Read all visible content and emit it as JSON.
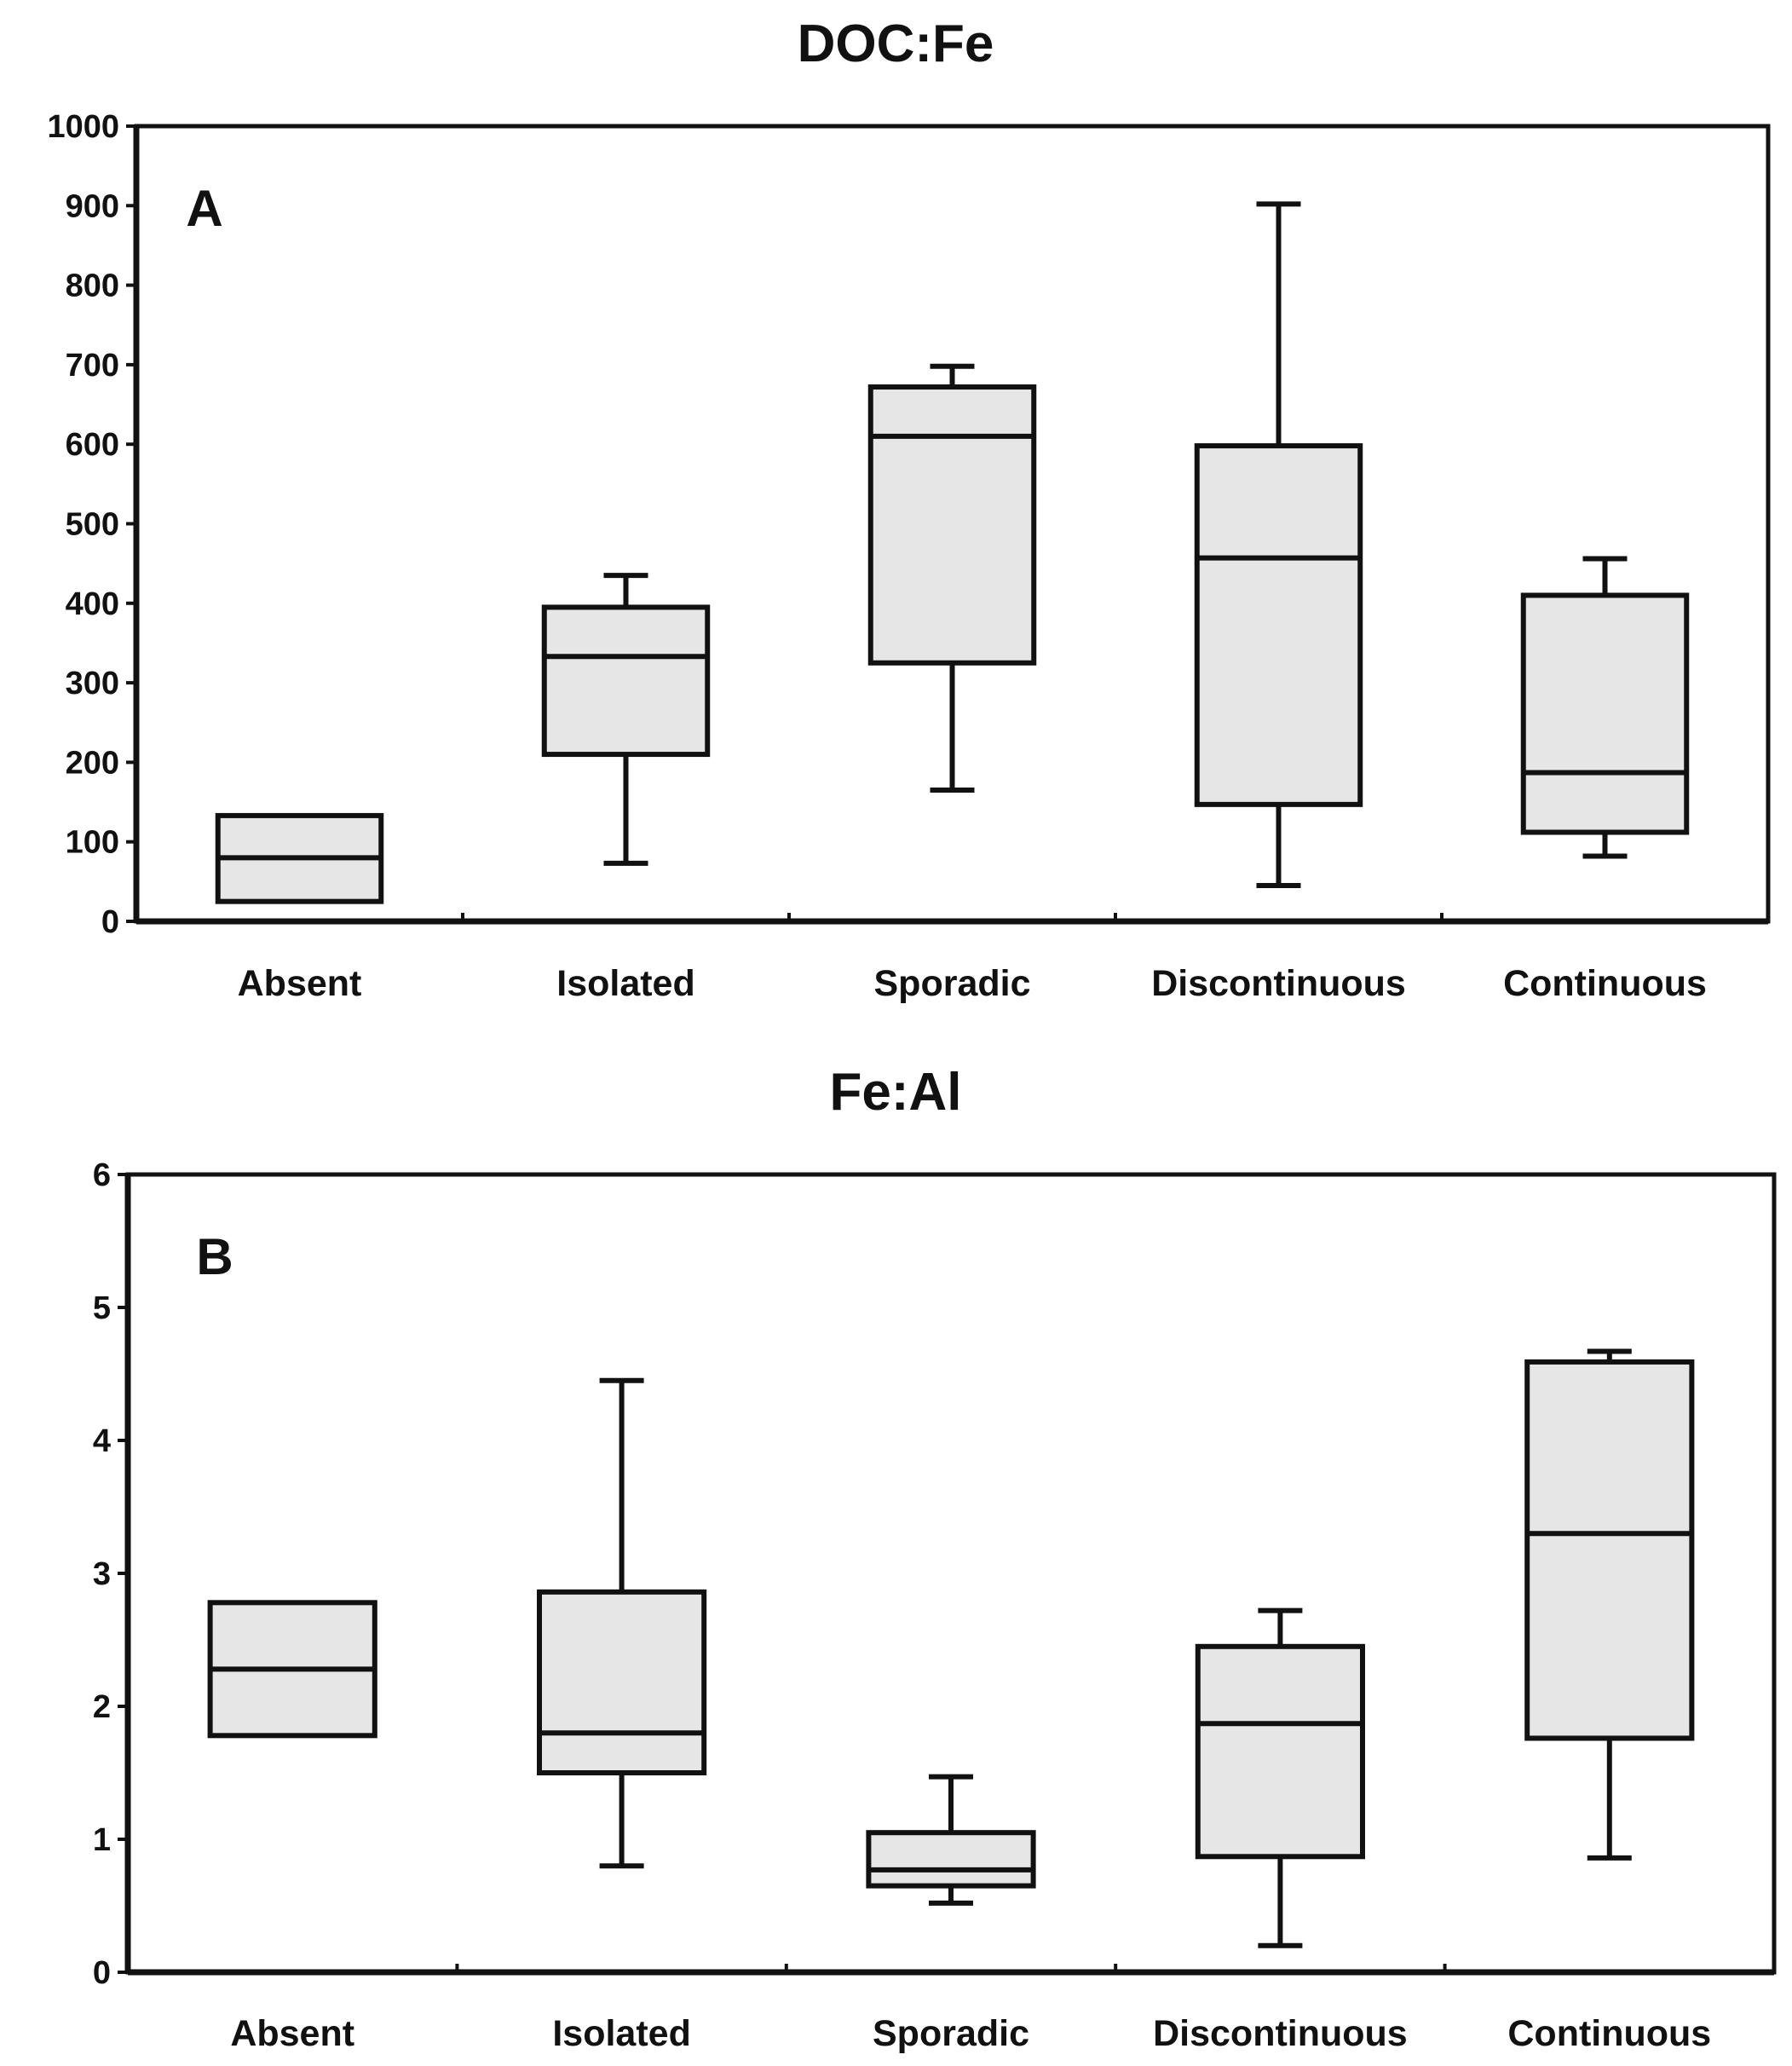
{
  "chart_data": [
    {
      "type": "box",
      "title": "DOC:Fe",
      "panel_label": "A",
      "categories": [
        "Absent",
        "Isolated",
        "Sporadic",
        "Discontinuous",
        "Continuous"
      ],
      "ylim": [
        0,
        1000
      ],
      "yticks": [
        0,
        100,
        200,
        300,
        400,
        500,
        600,
        700,
        800,
        900,
        1000
      ],
      "boxes": [
        {
          "min": null,
          "q1": 25,
          "median": 80,
          "q3": 133,
          "max": null
        },
        {
          "min": 73,
          "q1": 210,
          "median": 333,
          "q3": 395,
          "max": 435
        },
        {
          "min": 165,
          "q1": 325,
          "median": 610,
          "q3": 672,
          "max": 698
        },
        {
          "min": 45,
          "q1": 147,
          "median": 457,
          "q3": 598,
          "max": 902
        },
        {
          "min": 82,
          "q1": 112,
          "median": 187,
          "q3": 410,
          "max": 456
        }
      ]
    },
    {
      "type": "box",
      "title": "Fe:Al",
      "panel_label": "B",
      "categories": [
        "Absent",
        "Isolated",
        "Sporadic",
        "Discontinuous",
        "Continuous"
      ],
      "ylim": [
        0,
        6
      ],
      "yticks": [
        0,
        1,
        2,
        3,
        4,
        5,
        6
      ],
      "boxes": [
        {
          "min": null,
          "q1": 1.78,
          "median": 2.28,
          "q3": 2.78,
          "max": null
        },
        {
          "min": 0.8,
          "q1": 1.5,
          "median": 1.8,
          "q3": 2.86,
          "max": 4.45
        },
        {
          "min": 0.52,
          "q1": 0.65,
          "median": 0.77,
          "q3": 1.05,
          "max": 1.47
        },
        {
          "min": 0.2,
          "q1": 0.87,
          "median": 1.87,
          "q3": 2.45,
          "max": 2.72
        },
        {
          "min": 0.86,
          "q1": 1.76,
          "median": 3.3,
          "q3": 4.59,
          "max": 4.67
        }
      ]
    }
  ]
}
